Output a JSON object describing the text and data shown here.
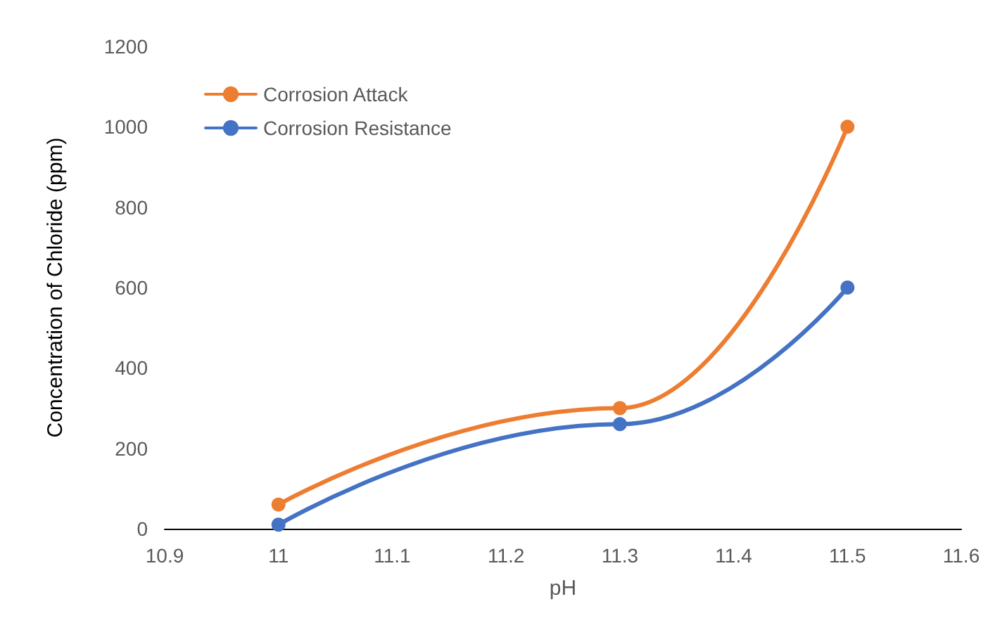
{
  "chart_data": {
    "type": "line",
    "xlabel": "pH",
    "ylabel": "Concentration of Chloride (ppm)",
    "x": [
      11,
      11.3,
      11.5
    ],
    "series": [
      {
        "name": "Corrosion Attack",
        "color": "#ed7d31",
        "values": [
          60,
          300,
          1000
        ]
      },
      {
        "name": "Corrosion Resistance",
        "color": "#4472c4",
        "values": [
          10,
          260,
          600
        ]
      }
    ],
    "xlim": [
      10.9,
      11.6
    ],
    "xticks": [
      10.9,
      11,
      11.1,
      11.2,
      11.3,
      11.4,
      11.5,
      11.6
    ],
    "ylim": [
      0,
      1200
    ],
    "yticks": [
      0,
      200,
      400,
      600,
      800,
      1000,
      1200
    ],
    "grid": false,
    "legend": "top left",
    "marker": "circle",
    "line_style": "solid"
  }
}
